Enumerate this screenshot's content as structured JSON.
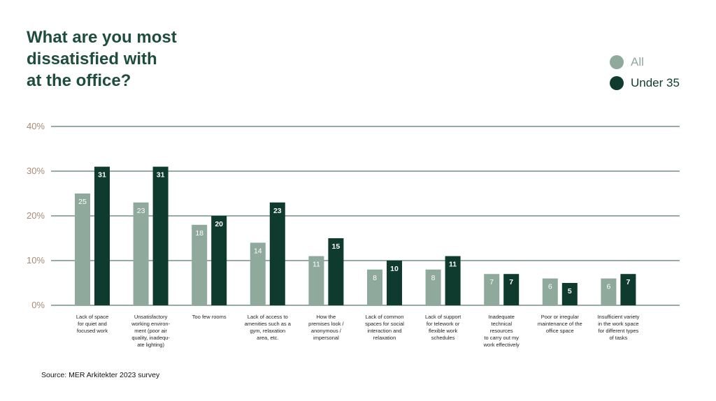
{
  "colors": {
    "title": "#1e4d3c",
    "all": "#8fa99c",
    "under35": "#0e3b2e",
    "grid": "#2f5a4a",
    "ytick": "#a98a72"
  },
  "header": {
    "title": "What are you most\ndissatisfied with\nat the office?"
  },
  "legend": {
    "items": [
      {
        "label": "All",
        "color": "#8fa99c",
        "text_color": "#8fa99c"
      },
      {
        "label": "Under 35",
        "color": "#0e3b2e",
        "text_color": "#0e3b2e"
      }
    ]
  },
  "footer": {
    "source": "Source: MER Arkitekter 2023 survey"
  },
  "chart_data": {
    "type": "bar",
    "title": "What are you most dissatisfied with at the office?",
    "xlabel": "",
    "ylabel": "",
    "ylim": [
      0,
      40
    ],
    "yticks": [
      0,
      10,
      20,
      30,
      40
    ],
    "ytick_labels": [
      "0%",
      "10%",
      "20%",
      "30%",
      "40%"
    ],
    "grid": true,
    "legend_position": "top-right",
    "categories": [
      "Lack of space\nfor quiet and\nfocused work",
      "Unsatisfactory\nworking environ-\nment (poor air\nquality, inadequ-\nate lighting)",
      "Too few rooms",
      "Lack of access to\namenities such as a\ngym, relaxation\narea, etc.",
      "How the\npremises look /\nanonymous /\nimpersonal",
      "Lack of common\nspaces for social\ninteraction and\nrelaxation",
      "Lack of support\nfor telework or\nflexible work\nschedules",
      "Inadequate\ntechnical\nresources\nto carry out my\nwork effectively",
      "Poor or irregular\nmaintenance of the\noffice space",
      "Insufficient variety\nin the work space\nfor different types\nof tasks"
    ],
    "series": [
      {
        "name": "All",
        "values": [
          25,
          23,
          18,
          14,
          11,
          8,
          8,
          7,
          6,
          6
        ]
      },
      {
        "name": "Under 35",
        "values": [
          31,
          31,
          20,
          23,
          15,
          10,
          11,
          7,
          5,
          7
        ]
      }
    ]
  }
}
